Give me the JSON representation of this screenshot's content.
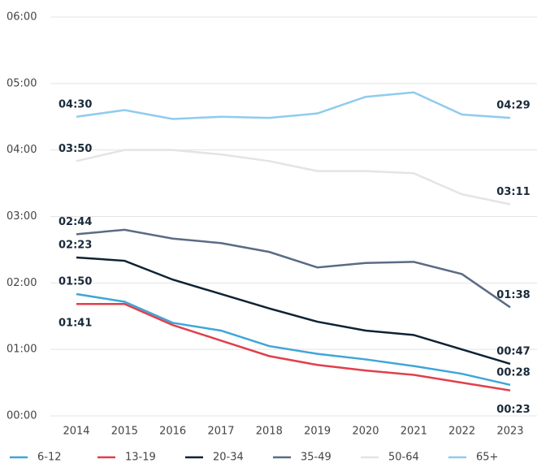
{
  "chart_data": {
    "type": "line",
    "categories": [
      "2014",
      "2015",
      "2016",
      "2017",
      "2018",
      "2019",
      "2020",
      "2021",
      "2022",
      "2023"
    ],
    "series": [
      {
        "name": "6-12",
        "color": "#3ea6d8",
        "values": [
          110,
          103,
          84,
          77,
          63,
          56,
          51,
          45,
          38,
          28
        ],
        "value_labels": [
          "01:50",
          null,
          null,
          null,
          null,
          null,
          null,
          null,
          null,
          "00:28"
        ]
      },
      {
        "name": "13-19",
        "color": "#e0404c",
        "values": [
          101,
          101,
          82,
          68,
          54,
          46,
          41,
          37,
          30,
          23
        ],
        "value_labels": [
          "01:41",
          null,
          null,
          null,
          null,
          null,
          null,
          null,
          null,
          "00:23"
        ]
      },
      {
        "name": "20-34",
        "color": "#0f2233",
        "values": [
          143,
          140,
          123,
          110,
          97,
          85,
          77,
          73,
          60,
          47
        ],
        "value_labels": [
          "02:23",
          null,
          null,
          null,
          null,
          null,
          null,
          null,
          null,
          "00:47"
        ]
      },
      {
        "name": "35-49",
        "color": "#5b6b85",
        "values": [
          164,
          168,
          160,
          156,
          148,
          134,
          138,
          139,
          128,
          98
        ],
        "value_labels": [
          "02:44",
          null,
          null,
          null,
          null,
          null,
          null,
          null,
          null,
          "01:38"
        ]
      },
      {
        "name": "50-64",
        "color": "#e4e4e8",
        "values": [
          230,
          240,
          240,
          236,
          230,
          221,
          221,
          219,
          200,
          191
        ],
        "value_labels": [
          "03:50",
          null,
          null,
          null,
          null,
          null,
          null,
          null,
          null,
          "03:11"
        ]
      },
      {
        "name": "65+",
        "color": "#8fcbef",
        "values": [
          270,
          276,
          268,
          270,
          269,
          273,
          288,
          292,
          272,
          269
        ],
        "value_labels": [
          "04:30",
          null,
          null,
          null,
          null,
          null,
          null,
          null,
          null,
          "04:29"
        ]
      }
    ],
    "ylim": [
      0,
      360
    ],
    "yticks": [
      {
        "value": 0,
        "label": "00:00"
      },
      {
        "value": 60,
        "label": "01:00"
      },
      {
        "value": 120,
        "label": "02:00"
      },
      {
        "value": 180,
        "label": "03:00"
      },
      {
        "value": 240,
        "label": "04:00"
      },
      {
        "value": 300,
        "label": "05:00"
      },
      {
        "value": 360,
        "label": "06:00"
      }
    ],
    "grid": true
  }
}
